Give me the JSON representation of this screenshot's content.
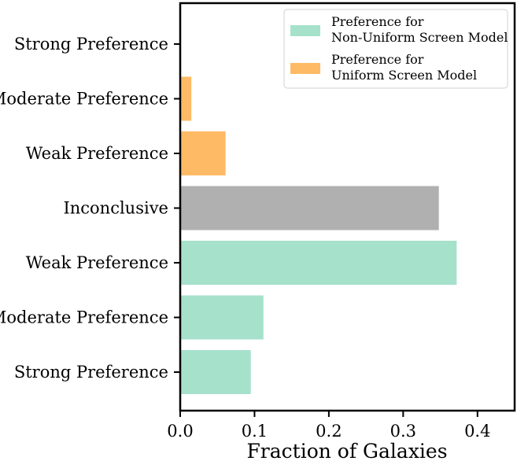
{
  "chart_data": {
    "type": "bar",
    "orientation": "horizontal",
    "title": "",
    "xlabel": "Fraction of Galaxies",
    "ylabel": "",
    "xlim": [
      0.0,
      0.45
    ],
    "xticks": [
      0.0,
      0.1,
      0.2,
      0.3,
      0.4
    ],
    "xtick_labels": [
      "0.0",
      "0.1",
      "0.2",
      "0.3",
      "0.4"
    ],
    "grid": false,
    "legend_position": "top-right",
    "categories": [
      "Strong Preference",
      "Moderate Preference",
      "Weak Preference",
      "Inconclusive",
      "Weak Preference",
      "Moderate Preference",
      "Strong Preference"
    ],
    "bars": [
      {
        "category_index": 0,
        "value": 0.001,
        "series": "uniform"
      },
      {
        "category_index": 1,
        "value": 0.015,
        "series": "uniform"
      },
      {
        "category_index": 2,
        "value": 0.061,
        "series": "uniform"
      },
      {
        "category_index": 3,
        "value": 0.348,
        "series": "inconclusive"
      },
      {
        "category_index": 4,
        "value": 0.372,
        "series": "non_uniform"
      },
      {
        "category_index": 5,
        "value": 0.112,
        "series": "non_uniform"
      },
      {
        "category_index": 6,
        "value": 0.095,
        "series": "non_uniform"
      }
    ],
    "series": [
      {
        "key": "non_uniform",
        "legend_lines": [
          "Preference for",
          "Non-Uniform Screen Model"
        ],
        "color": "#a6e1cc"
      },
      {
        "key": "uniform",
        "legend_lines": [
          "Preference for",
          "Uniform Screen Model"
        ],
        "color": "#ffba66"
      },
      {
        "key": "inconclusive",
        "color": "#b0b0b0"
      }
    ]
  }
}
